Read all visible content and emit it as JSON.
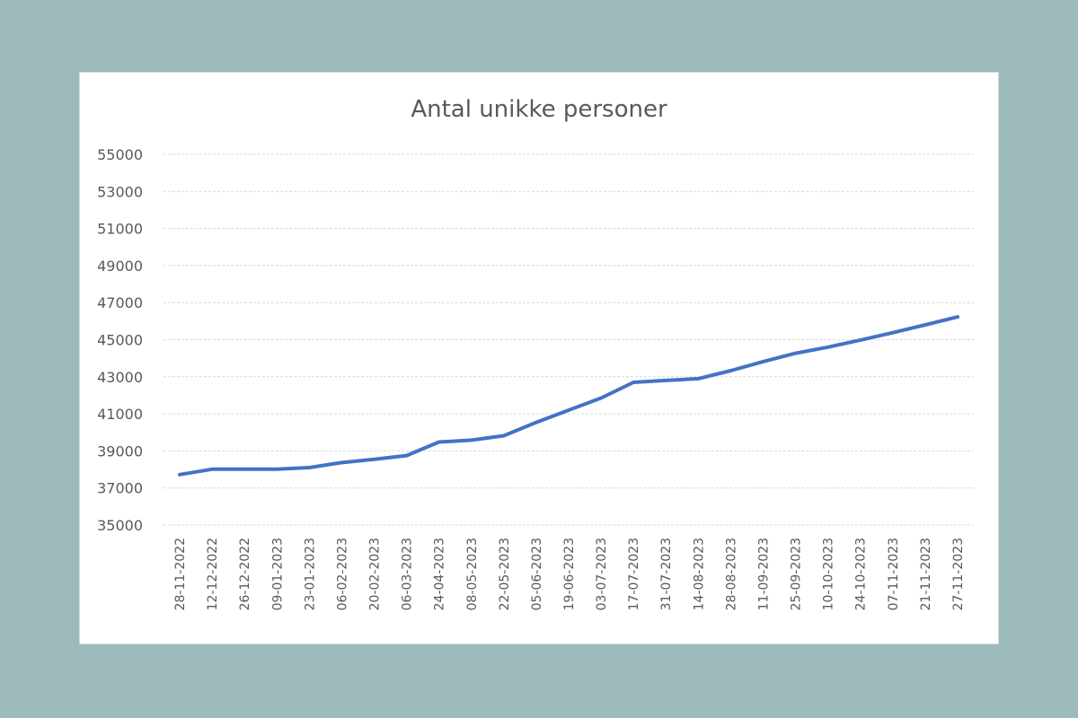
{
  "chart_data": {
    "type": "line",
    "title": "Antal unikke personer",
    "xlabel": "",
    "ylabel": "",
    "ylim": [
      35000,
      55000
    ],
    "yticks": [
      35000,
      37000,
      39000,
      41000,
      43000,
      45000,
      47000,
      49000,
      51000,
      53000,
      55000
    ],
    "grid": true,
    "legend": "none",
    "categories": [
      "28-11-2022",
      "12-12-2022",
      "26-12-2022",
      "09-01-2023",
      "23-01-2023",
      "06-02-2023",
      "20-02-2023",
      "06-03-2023",
      "24-04-2023",
      "08-05-2023",
      "22-05-2023",
      "05-06-2023",
      "19-06-2023",
      "03-07-2023",
      "17-07-2023",
      "31-07-2023",
      "14-08-2023",
      "28-08-2023",
      "11-09-2023",
      "25-09-2023",
      "10-10-2023",
      "24-10-2023",
      "07-11-2023",
      "21-11-2023",
      "27-11-2023"
    ],
    "series": [
      {
        "name": "Antal unikke personer",
        "color": "#4472c4",
        "values": [
          37720,
          38010,
          38010,
          38010,
          38100,
          38370,
          38550,
          38750,
          39480,
          39580,
          39820,
          40540,
          41200,
          41850,
          42700,
          42800,
          42900,
          43330,
          43820,
          44270,
          44600,
          44980,
          45380,
          45800,
          46230
        ]
      }
    ]
  },
  "colors": {
    "background": "#9bbab9",
    "card": "#ffffff",
    "line": "#4472c4",
    "gridline": "#d9d9d9",
    "text": "#595959"
  }
}
